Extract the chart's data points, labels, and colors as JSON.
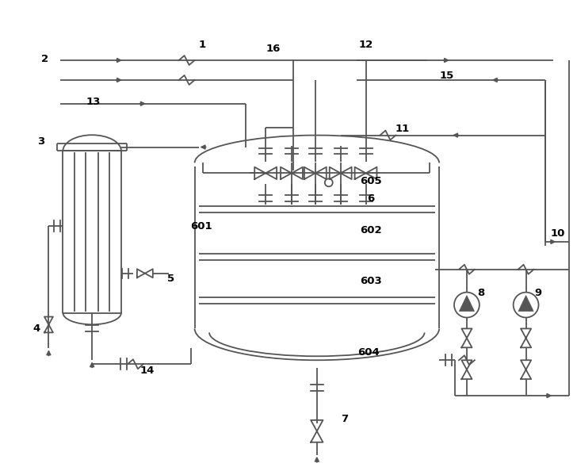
{
  "bg": "#ffffff",
  "lc": "#555555",
  "lw": 1.3,
  "fw": 7.28,
  "fh": 5.89,
  "dpi": 100,
  "fs": 9.5
}
